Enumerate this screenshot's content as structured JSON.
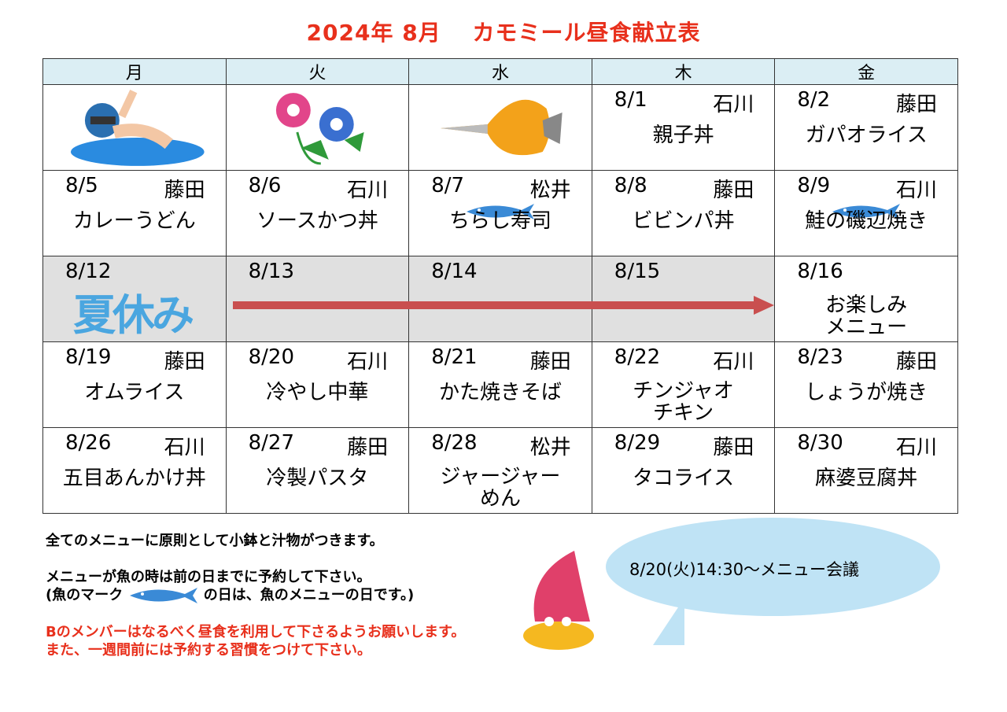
{
  "title": "2024年 8月　 カモミール昼食献立表",
  "weekdays": [
    "月",
    "火",
    "水",
    "木",
    "金"
  ],
  "weeks": [
    [
      {
        "picture": "swimmer"
      },
      {
        "picture": "morning-glory"
      },
      {
        "picture": "butterflyfish"
      },
      {
        "date": "8/1",
        "cook": "石川",
        "menu": "親子丼"
      },
      {
        "date": "8/2",
        "cook": "藤田",
        "menu": "ガパオライス"
      }
    ],
    [
      {
        "date": "8/5",
        "cook": "藤田",
        "menu": "カレーうどん"
      },
      {
        "date": "8/6",
        "cook": "石川",
        "menu": "ソースかつ丼"
      },
      {
        "date": "8/7",
        "cook": "松井",
        "menu": "ちらし寿司",
        "fish": true
      },
      {
        "date": "8/8",
        "cook": "藤田",
        "menu": "ビビンパ丼"
      },
      {
        "date": "8/9",
        "cook": "石川",
        "menu": "鮭の磯辺焼き",
        "fish": true
      }
    ],
    [
      {
        "date": "8/12",
        "label": "夏休み"
      },
      {
        "date": "8/13"
      },
      {
        "date": "8/14"
      },
      {
        "date": "8/15"
      },
      {
        "date": "8/16",
        "menu": "お楽しみ\nメニュー"
      }
    ],
    [
      {
        "date": "8/19",
        "cook": "藤田",
        "menu": "オムライス"
      },
      {
        "date": "8/20",
        "cook": "石川",
        "menu": "冷やし中華"
      },
      {
        "date": "8/21",
        "cook": "藤田",
        "menu": "かた焼きそば"
      },
      {
        "date": "8/22",
        "cook": "石川",
        "menu": "チンジャオ\nチキン"
      },
      {
        "date": "8/23",
        "cook": "藤田",
        "menu": "しょうが焼き"
      }
    ],
    [
      {
        "date": "8/26",
        "cook": "石川",
        "menu": "五目あんかけ丼"
      },
      {
        "date": "8/27",
        "cook": "藤田",
        "menu": "冷製パスタ"
      },
      {
        "date": "8/28",
        "cook": "松井",
        "menu": "ジャージャー\nめん"
      },
      {
        "date": "8/29",
        "cook": "藤田",
        "menu": "タコライス"
      },
      {
        "date": "8/30",
        "cook": "石川",
        "menu": "麻婆豆腐丼"
      }
    ]
  ],
  "notes": {
    "line1": "全てのメニューに原則として小鉢と汁物がつきます。",
    "line2": "メニューが魚の時は前の日までに予約して下さい。",
    "line3a": "(魚のマーク",
    "line3b": "の日は、魚のメニューの日です。)",
    "line4": "Bのメンバーはなるべく昼食を利用して下さるようお願いします。",
    "line5": "また、一週間前には予約する習慣をつけて下さい。"
  },
  "bubble": "8/20(火)14:30〜メニュー会議",
  "colors": {
    "title": "#e8301c",
    "header_bg": "#dbeef4",
    "holiday_bg": "#e0e0e0",
    "arrow": "#c94f4f",
    "fish": "#3a8ad6",
    "bubble": "#bfe3f5"
  }
}
